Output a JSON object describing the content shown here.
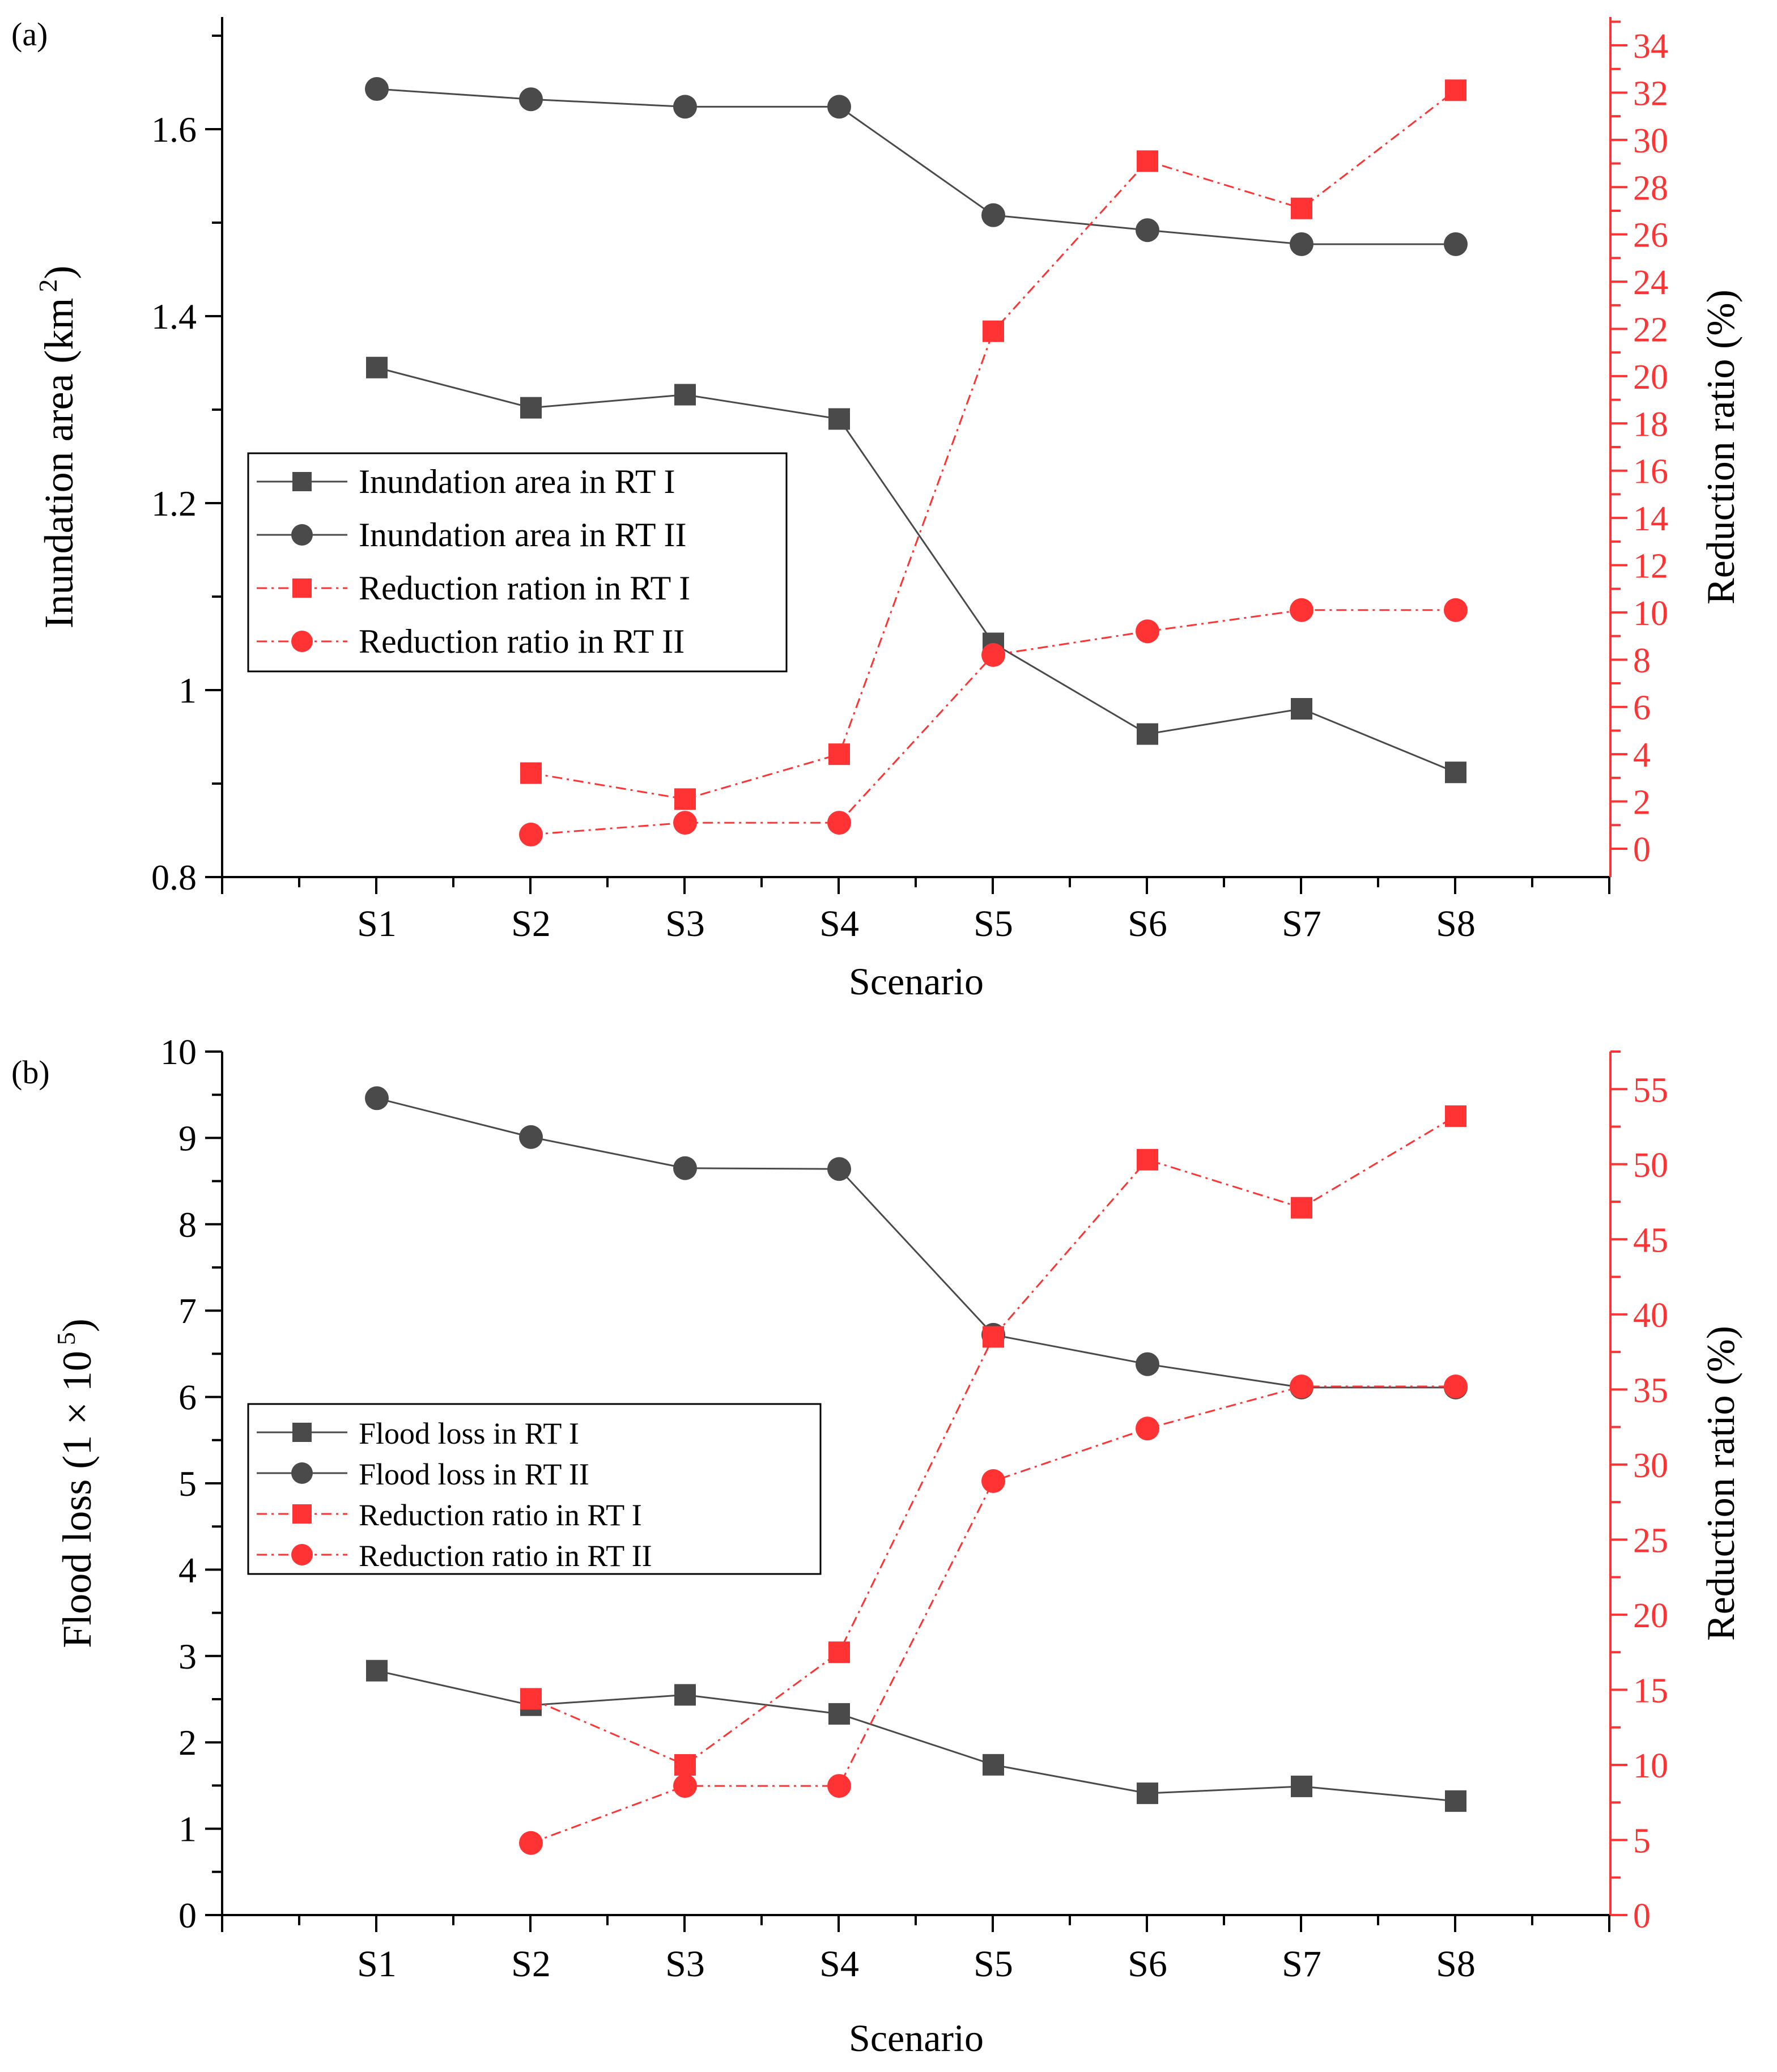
{
  "chart_data": [
    {
      "type": "line",
      "panel_label": "(a)",
      "xlabel": "Scenario",
      "ylabel_left": "Inundation area (km",
      "ylabel_left_sup": "2",
      "ylabel_left_close": ")",
      "ylabel_right": "Reduction ratio (%)",
      "categories": [
        "S1",
        "S2",
        "S3",
        "S4",
        "S5",
        "S6",
        "S7",
        "S8"
      ],
      "ylim_left": [
        0.8,
        1.72
      ],
      "ylim_right": [
        -1.2,
        35.2
      ],
      "yticks_left": [
        0.8,
        1.0,
        1.2,
        1.4,
        1.6
      ],
      "ytick_labels_left": [
        "0.8",
        "1",
        "1.2",
        "1.4",
        "1.6"
      ],
      "yticks_right": [
        0,
        2,
        4,
        6,
        8,
        10,
        12,
        14,
        16,
        18,
        20,
        22,
        24,
        26,
        28,
        30,
        32,
        34
      ],
      "ytick_labels_right": [
        "0",
        "2",
        "4",
        "6",
        "8",
        "10",
        "12",
        "14",
        "16",
        "18",
        "20",
        "22",
        "24",
        "26",
        "28",
        "30",
        "32",
        "34"
      ],
      "series": [
        {
          "name": "Inundation area in RT I",
          "axis": "left",
          "marker": "square",
          "color": "#4a4a4a",
          "dashed": false,
          "values": [
            1.345,
            1.302,
            1.316,
            1.29,
            1.05,
            0.953,
            0.98,
            0.912
          ]
        },
        {
          "name": "Inundation area in RT II",
          "axis": "left",
          "marker": "circle",
          "color": "#4a4a4a",
          "dashed": false,
          "values": [
            1.643,
            1.632,
            1.624,
            1.624,
            1.508,
            1.492,
            1.477,
            1.477
          ]
        },
        {
          "name": "Reduction ration in RT I",
          "axis": "right",
          "marker": "square",
          "color": "#ff3333",
          "dashed": true,
          "values": [
            null,
            3.2,
            2.1,
            4.0,
            21.9,
            29.1,
            27.1,
            32.1
          ]
        },
        {
          "name": "Reduction ratio in RT II",
          "axis": "right",
          "marker": "circle",
          "color": "#ff3333",
          "dashed": true,
          "values": [
            null,
            0.6,
            1.1,
            1.1,
            8.2,
            9.2,
            10.1,
            10.1
          ]
        }
      ]
    },
    {
      "type": "line",
      "panel_label": "(b)",
      "xlabel": "Scenario",
      "ylabel_left": "Flood loss (1 × 10",
      "ylabel_left_sup": "5",
      "ylabel_left_close": ")",
      "ylabel_right": "Reduction ratio (%)",
      "categories": [
        "S1",
        "S2",
        "S3",
        "S4",
        "S5",
        "S6",
        "S7",
        "S8"
      ],
      "ylim_left": [
        0,
        10
      ],
      "ylim_right": [
        0,
        57.5
      ],
      "yticks_left": [
        0,
        1,
        2,
        3,
        4,
        5,
        6,
        7,
        8,
        9,
        10
      ],
      "ytick_labels_left": [
        "0",
        "1",
        "2",
        "3",
        "4",
        "5",
        "6",
        "7",
        "8",
        "9",
        "10"
      ],
      "yticks_right": [
        0,
        5,
        10,
        15,
        20,
        25,
        30,
        35,
        40,
        45,
        50,
        55
      ],
      "ytick_labels_right": [
        "0",
        "5",
        "10",
        "15",
        "20",
        "25",
        "30",
        "35",
        "40",
        "45",
        "50",
        "55"
      ],
      "series": [
        {
          "name": "Flood loss in RT I",
          "axis": "left",
          "marker": "square",
          "color": "#4a4a4a",
          "dashed": false,
          "values": [
            2.83,
            2.43,
            2.55,
            2.33,
            1.74,
            1.41,
            1.49,
            1.32
          ]
        },
        {
          "name": "Flood loss in RT II",
          "axis": "left",
          "marker": "circle",
          "color": "#4a4a4a",
          "dashed": false,
          "values": [
            9.46,
            9.01,
            8.65,
            8.64,
            6.72,
            6.38,
            6.11,
            6.11
          ]
        },
        {
          "name": "Reduction ratio in RT I",
          "axis": "right",
          "marker": "square",
          "color": "#ff3333",
          "dashed": true,
          "values": [
            null,
            14.4,
            10.0,
            17.5,
            38.5,
            50.3,
            47.1,
            53.2
          ]
        },
        {
          "name": "Reduction ratio in RT II",
          "axis": "right",
          "marker": "circle",
          "color": "#ff3333",
          "dashed": true,
          "values": [
            null,
            4.8,
            8.6,
            8.6,
            28.9,
            32.4,
            35.2,
            35.2
          ]
        }
      ]
    }
  ]
}
